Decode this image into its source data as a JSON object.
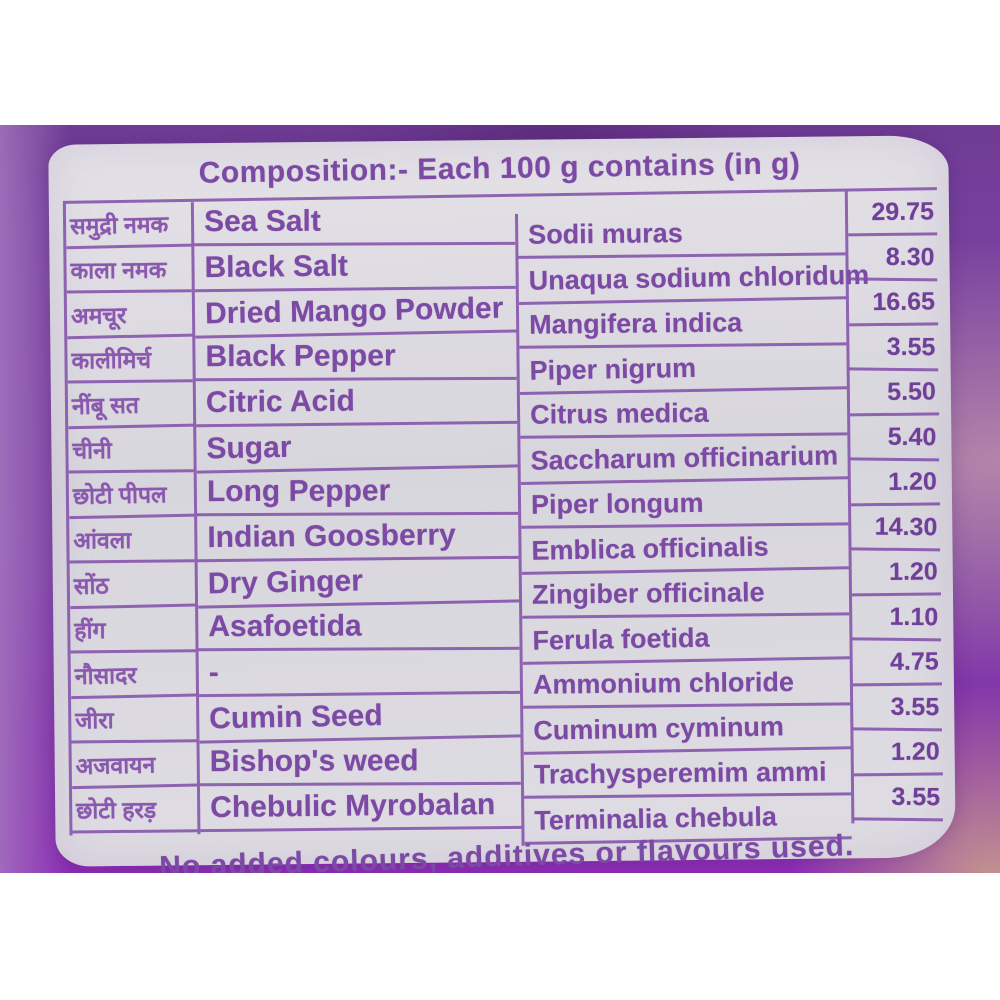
{
  "label": {
    "title": "Composition:- Each 100 g contains (in g)",
    "footer_note": "No added colours, additives or flavours used."
  },
  "table": {
    "columns": [
      "hindi_name",
      "english_name",
      "latin_name",
      "amount_g"
    ],
    "rows": [
      {
        "hindi": "समुद्री नमक",
        "english": "Sea Salt",
        "latin": "Sodii muras",
        "value": "29.75"
      },
      {
        "hindi": "काला नमक",
        "english": "Black Salt",
        "latin": "Unaqua sodium chloridum",
        "value": "8.30"
      },
      {
        "hindi": "अमचूर",
        "english": "Dried Mango Powder",
        "latin": "Mangifera indica",
        "value": "16.65"
      },
      {
        "hindi": "कालीमिर्च",
        "english": "Black Pepper",
        "latin": "Piper nigrum",
        "value": "3.55"
      },
      {
        "hindi": "नींबू सत",
        "english": "Citric Acid",
        "latin": "Citrus medica",
        "value": "5.50"
      },
      {
        "hindi": "चीनी",
        "english": "Sugar",
        "latin": "Saccharum officinarium",
        "value": "5.40"
      },
      {
        "hindi": "छोटी पीपल",
        "english": "Long Pepper",
        "latin": "Piper longum",
        "value": "1.20"
      },
      {
        "hindi": "आंवला",
        "english": "Indian Goosberry",
        "latin": "Emblica officinalis",
        "value": "14.30"
      },
      {
        "hindi": "सोंठ",
        "english": "Dry Ginger",
        "latin": "Zingiber officinale",
        "value": "1.20"
      },
      {
        "hindi": "हींग",
        "english": "Asafoetida",
        "latin": "Ferula foetida",
        "value": "1.10"
      },
      {
        "hindi": "नौसादर",
        "english": "-",
        "latin": "Ammonium chloride",
        "value": "4.75"
      },
      {
        "hindi": "जीरा",
        "english": "Cumin Seed",
        "latin": "Cuminum cyminum",
        "value": "3.55"
      },
      {
        "hindi": "अजवायन",
        "english": "Bishop's weed",
        "latin": "Trachysperemim ammi",
        "value": "1.20"
      },
      {
        "hindi": "छोटी हरड़",
        "english": "Chebulic Myrobalan",
        "latin": "Terminalia chebula",
        "value": "3.55"
      }
    ]
  },
  "colors": {
    "ink": "#7c4aa4",
    "label_background": "#dcdae0",
    "package_purple_top": "#6f3c95",
    "package_purple_bottom": "#8b2db4",
    "package_mauve_right": "#ba8caa",
    "corner_pink": "#c69a8c"
  }
}
